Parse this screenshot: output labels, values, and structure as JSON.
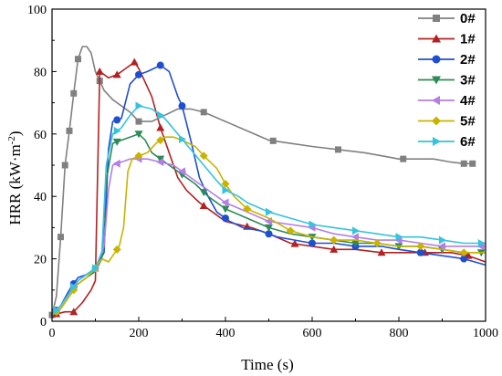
{
  "chart_data": {
    "type": "line",
    "xlabel": "Time (s)",
    "ylabel_main": "HRR (kW·m",
    "ylabel_sup": "-2",
    "ylabel_close": ")",
    "xlim": [
      0,
      1000
    ],
    "ylim": [
      0,
      100
    ],
    "xticks": [
      0,
      200,
      400,
      600,
      800,
      1000
    ],
    "yticks": [
      0,
      20,
      40,
      60,
      80,
      100
    ],
    "grid": false,
    "legend_position": "top-right",
    "series": [
      {
        "name": "0#",
        "color": "#808080",
        "marker": "square",
        "points": [
          [
            0,
            2
          ],
          [
            10,
            8
          ],
          [
            20,
            27
          ],
          [
            30,
            50
          ],
          [
            40,
            61
          ],
          [
            50,
            73
          ],
          [
            60,
            84
          ],
          [
            70,
            88
          ],
          [
            80,
            88
          ],
          [
            90,
            86
          ],
          [
            100,
            80
          ],
          [
            110,
            77
          ],
          [
            120,
            74
          ],
          [
            140,
            71
          ],
          [
            160,
            69
          ],
          [
            180,
            67
          ],
          [
            200,
            64
          ],
          [
            230,
            64
          ],
          [
            260,
            66
          ],
          [
            290,
            68
          ],
          [
            320,
            68
          ],
          [
            350,
            67
          ],
          [
            400,
            64
          ],
          [
            450,
            61
          ],
          [
            500,
            58
          ],
          [
            550,
            57
          ],
          [
            600,
            56
          ],
          [
            660,
            55
          ],
          [
            720,
            54
          ],
          [
            760,
            53
          ],
          [
            800,
            52
          ],
          [
            850,
            52
          ],
          [
            880,
            52
          ],
          [
            920,
            51
          ],
          [
            950,
            50.5
          ],
          [
            970,
            50.5
          ]
        ],
        "markers_x": [
          0,
          20,
          30,
          40,
          50,
          60,
          110,
          200,
          350,
          510,
          660,
          810,
          950,
          970
        ]
      },
      {
        "name": "1#",
        "color": "#b22222",
        "marker": "triangle-up",
        "points": [
          [
            0,
            2
          ],
          [
            30,
            3
          ],
          [
            50,
            3
          ],
          [
            70,
            6
          ],
          [
            90,
            10
          ],
          [
            100,
            13
          ],
          [
            110,
            80
          ],
          [
            130,
            78
          ],
          [
            150,
            79
          ],
          [
            170,
            81
          ],
          [
            190,
            83
          ],
          [
            200,
            81
          ],
          [
            210,
            78
          ],
          [
            230,
            72
          ],
          [
            250,
            62
          ],
          [
            270,
            54
          ],
          [
            290,
            46
          ],
          [
            310,
            42
          ],
          [
            340,
            38
          ],
          [
            370,
            35
          ],
          [
            400,
            32
          ],
          [
            430,
            31
          ],
          [
            460,
            30
          ],
          [
            500,
            28
          ],
          [
            550,
            25
          ],
          [
            600,
            24
          ],
          [
            650,
            23
          ],
          [
            700,
            23
          ],
          [
            760,
            22
          ],
          [
            820,
            22
          ],
          [
            870,
            22
          ],
          [
            920,
            22
          ],
          [
            960,
            21
          ],
          [
            1000,
            19
          ]
        ],
        "markers_x": [
          10,
          50,
          110,
          150,
          190,
          250,
          350,
          450,
          560,
          650,
          760,
          860,
          960
        ]
      },
      {
        "name": "2#",
        "color": "#1f4fd1",
        "marker": "circle",
        "points": [
          [
            0,
            2
          ],
          [
            20,
            5
          ],
          [
            40,
            10
          ],
          [
            60,
            14
          ],
          [
            80,
            15
          ],
          [
            100,
            17
          ],
          [
            120,
            22
          ],
          [
            130,
            55
          ],
          [
            140,
            64
          ],
          [
            160,
            65
          ],
          [
            180,
            76
          ],
          [
            200,
            79
          ],
          [
            220,
            80
          ],
          [
            250,
            82
          ],
          [
            270,
            80
          ],
          [
            290,
            72
          ],
          [
            300,
            69
          ],
          [
            320,
            58
          ],
          [
            340,
            46
          ],
          [
            360,
            40
          ],
          [
            380,
            35
          ],
          [
            410,
            32
          ],
          [
            440,
            30
          ],
          [
            480,
            29
          ],
          [
            520,
            27
          ],
          [
            560,
            26
          ],
          [
            600,
            25
          ],
          [
            650,
            25
          ],
          [
            700,
            24
          ],
          [
            760,
            24
          ],
          [
            800,
            23
          ],
          [
            850,
            22
          ],
          [
            900,
            21
          ],
          [
            950,
            20
          ],
          [
            1000,
            18
          ]
        ],
        "markers_x": [
          10,
          50,
          150,
          200,
          250,
          300,
          400,
          500,
          600,
          700,
          850,
          950
        ]
      },
      {
        "name": "3#",
        "color": "#2e8b57",
        "marker": "triangle-down",
        "points": [
          [
            0,
            2
          ],
          [
            20,
            4
          ],
          [
            40,
            8
          ],
          [
            60,
            12
          ],
          [
            80,
            14
          ],
          [
            100,
            16
          ],
          [
            115,
            20
          ],
          [
            125,
            45
          ],
          [
            140,
            57
          ],
          [
            160,
            58
          ],
          [
            180,
            59
          ],
          [
            200,
            60
          ],
          [
            215,
            58
          ],
          [
            230,
            54
          ],
          [
            250,
            52
          ],
          [
            270,
            50
          ],
          [
            300,
            47
          ],
          [
            330,
            44
          ],
          [
            360,
            40
          ],
          [
            400,
            36
          ],
          [
            450,
            33
          ],
          [
            500,
            30
          ],
          [
            550,
            28
          ],
          [
            600,
            27
          ],
          [
            650,
            26
          ],
          [
            700,
            25
          ],
          [
            750,
            25
          ],
          [
            800,
            24
          ],
          [
            850,
            24
          ],
          [
            900,
            23
          ],
          [
            950,
            22
          ],
          [
            1000,
            22
          ]
        ],
        "markers_x": [
          10,
          50,
          150,
          200,
          250,
          300,
          350,
          400,
          500,
          600,
          700,
          800,
          900,
          990
        ]
      },
      {
        "name": "4#",
        "color": "#b47ee5",
        "marker": "triangle-left",
        "points": [
          [
            0,
            2
          ],
          [
            20,
            5
          ],
          [
            40,
            9
          ],
          [
            60,
            13
          ],
          [
            80,
            15
          ],
          [
            100,
            17
          ],
          [
            120,
            24
          ],
          [
            130,
            42
          ],
          [
            140,
            50
          ],
          [
            160,
            51
          ],
          [
            180,
            52
          ],
          [
            200,
            52
          ],
          [
            220,
            52
          ],
          [
            250,
            51
          ],
          [
            280,
            50
          ],
          [
            300,
            48
          ],
          [
            330,
            45
          ],
          [
            360,
            42
          ],
          [
            400,
            38
          ],
          [
            450,
            35
          ],
          [
            500,
            32
          ],
          [
            550,
            31
          ],
          [
            600,
            30
          ],
          [
            650,
            28
          ],
          [
            700,
            27
          ],
          [
            750,
            26
          ],
          [
            800,
            26
          ],
          [
            850,
            25
          ],
          [
            900,
            24
          ],
          [
            950,
            24
          ],
          [
            1000,
            24
          ]
        ],
        "markers_x": [
          10,
          50,
          100,
          150,
          200,
          250,
          300,
          400,
          500,
          600,
          700,
          800,
          900,
          990
        ]
      },
      {
        "name": "5#",
        "color": "#c8b400",
        "marker": "diamond",
        "points": [
          [
            0,
            2
          ],
          [
            20,
            4
          ],
          [
            40,
            8
          ],
          [
            60,
            12
          ],
          [
            80,
            14
          ],
          [
            100,
            17
          ],
          [
            115,
            20
          ],
          [
            130,
            19
          ],
          [
            145,
            22
          ],
          [
            155,
            24
          ],
          [
            165,
            30
          ],
          [
            175,
            48
          ],
          [
            185,
            52
          ],
          [
            200,
            53
          ],
          [
            220,
            54
          ],
          [
            240,
            57
          ],
          [
            260,
            59
          ],
          [
            280,
            59
          ],
          [
            300,
            58
          ],
          [
            330,
            56
          ],
          [
            350,
            53
          ],
          [
            380,
            49
          ],
          [
            400,
            44
          ],
          [
            420,
            40
          ],
          [
            450,
            36
          ],
          [
            500,
            33
          ],
          [
            550,
            29
          ],
          [
            600,
            27
          ],
          [
            650,
            26
          ],
          [
            700,
            26
          ],
          [
            750,
            25
          ],
          [
            800,
            24
          ],
          [
            850,
            24
          ],
          [
            900,
            23
          ],
          [
            950,
            22
          ],
          [
            1000,
            22
          ]
        ],
        "markers_x": [
          10,
          50,
          100,
          150,
          200,
          250,
          350,
          400,
          450,
          550,
          650,
          750,
          850,
          950
        ]
      },
      {
        "name": "6#",
        "color": "#35c3dd",
        "marker": "triangle-right",
        "points": [
          [
            0,
            2
          ],
          [
            20,
            5
          ],
          [
            40,
            9
          ],
          [
            60,
            13
          ],
          [
            80,
            15
          ],
          [
            100,
            17
          ],
          [
            115,
            22
          ],
          [
            125,
            50
          ],
          [
            140,
            60
          ],
          [
            160,
            62
          ],
          [
            180,
            66
          ],
          [
            200,
            69
          ],
          [
            230,
            68
          ],
          [
            260,
            65
          ],
          [
            290,
            60
          ],
          [
            320,
            55
          ],
          [
            350,
            50
          ],
          [
            380,
            45
          ],
          [
            400,
            42
          ],
          [
            430,
            40
          ],
          [
            450,
            38
          ],
          [
            500,
            35
          ],
          [
            550,
            33
          ],
          [
            600,
            31
          ],
          [
            650,
            30
          ],
          [
            700,
            29
          ],
          [
            750,
            28
          ],
          [
            800,
            27
          ],
          [
            850,
            27
          ],
          [
            900,
            26
          ],
          [
            950,
            25
          ],
          [
            1000,
            25
          ]
        ],
        "markers_x": [
          10,
          50,
          100,
          150,
          200,
          250,
          300,
          400,
          500,
          600,
          700,
          800,
          900,
          990
        ]
      }
    ]
  }
}
